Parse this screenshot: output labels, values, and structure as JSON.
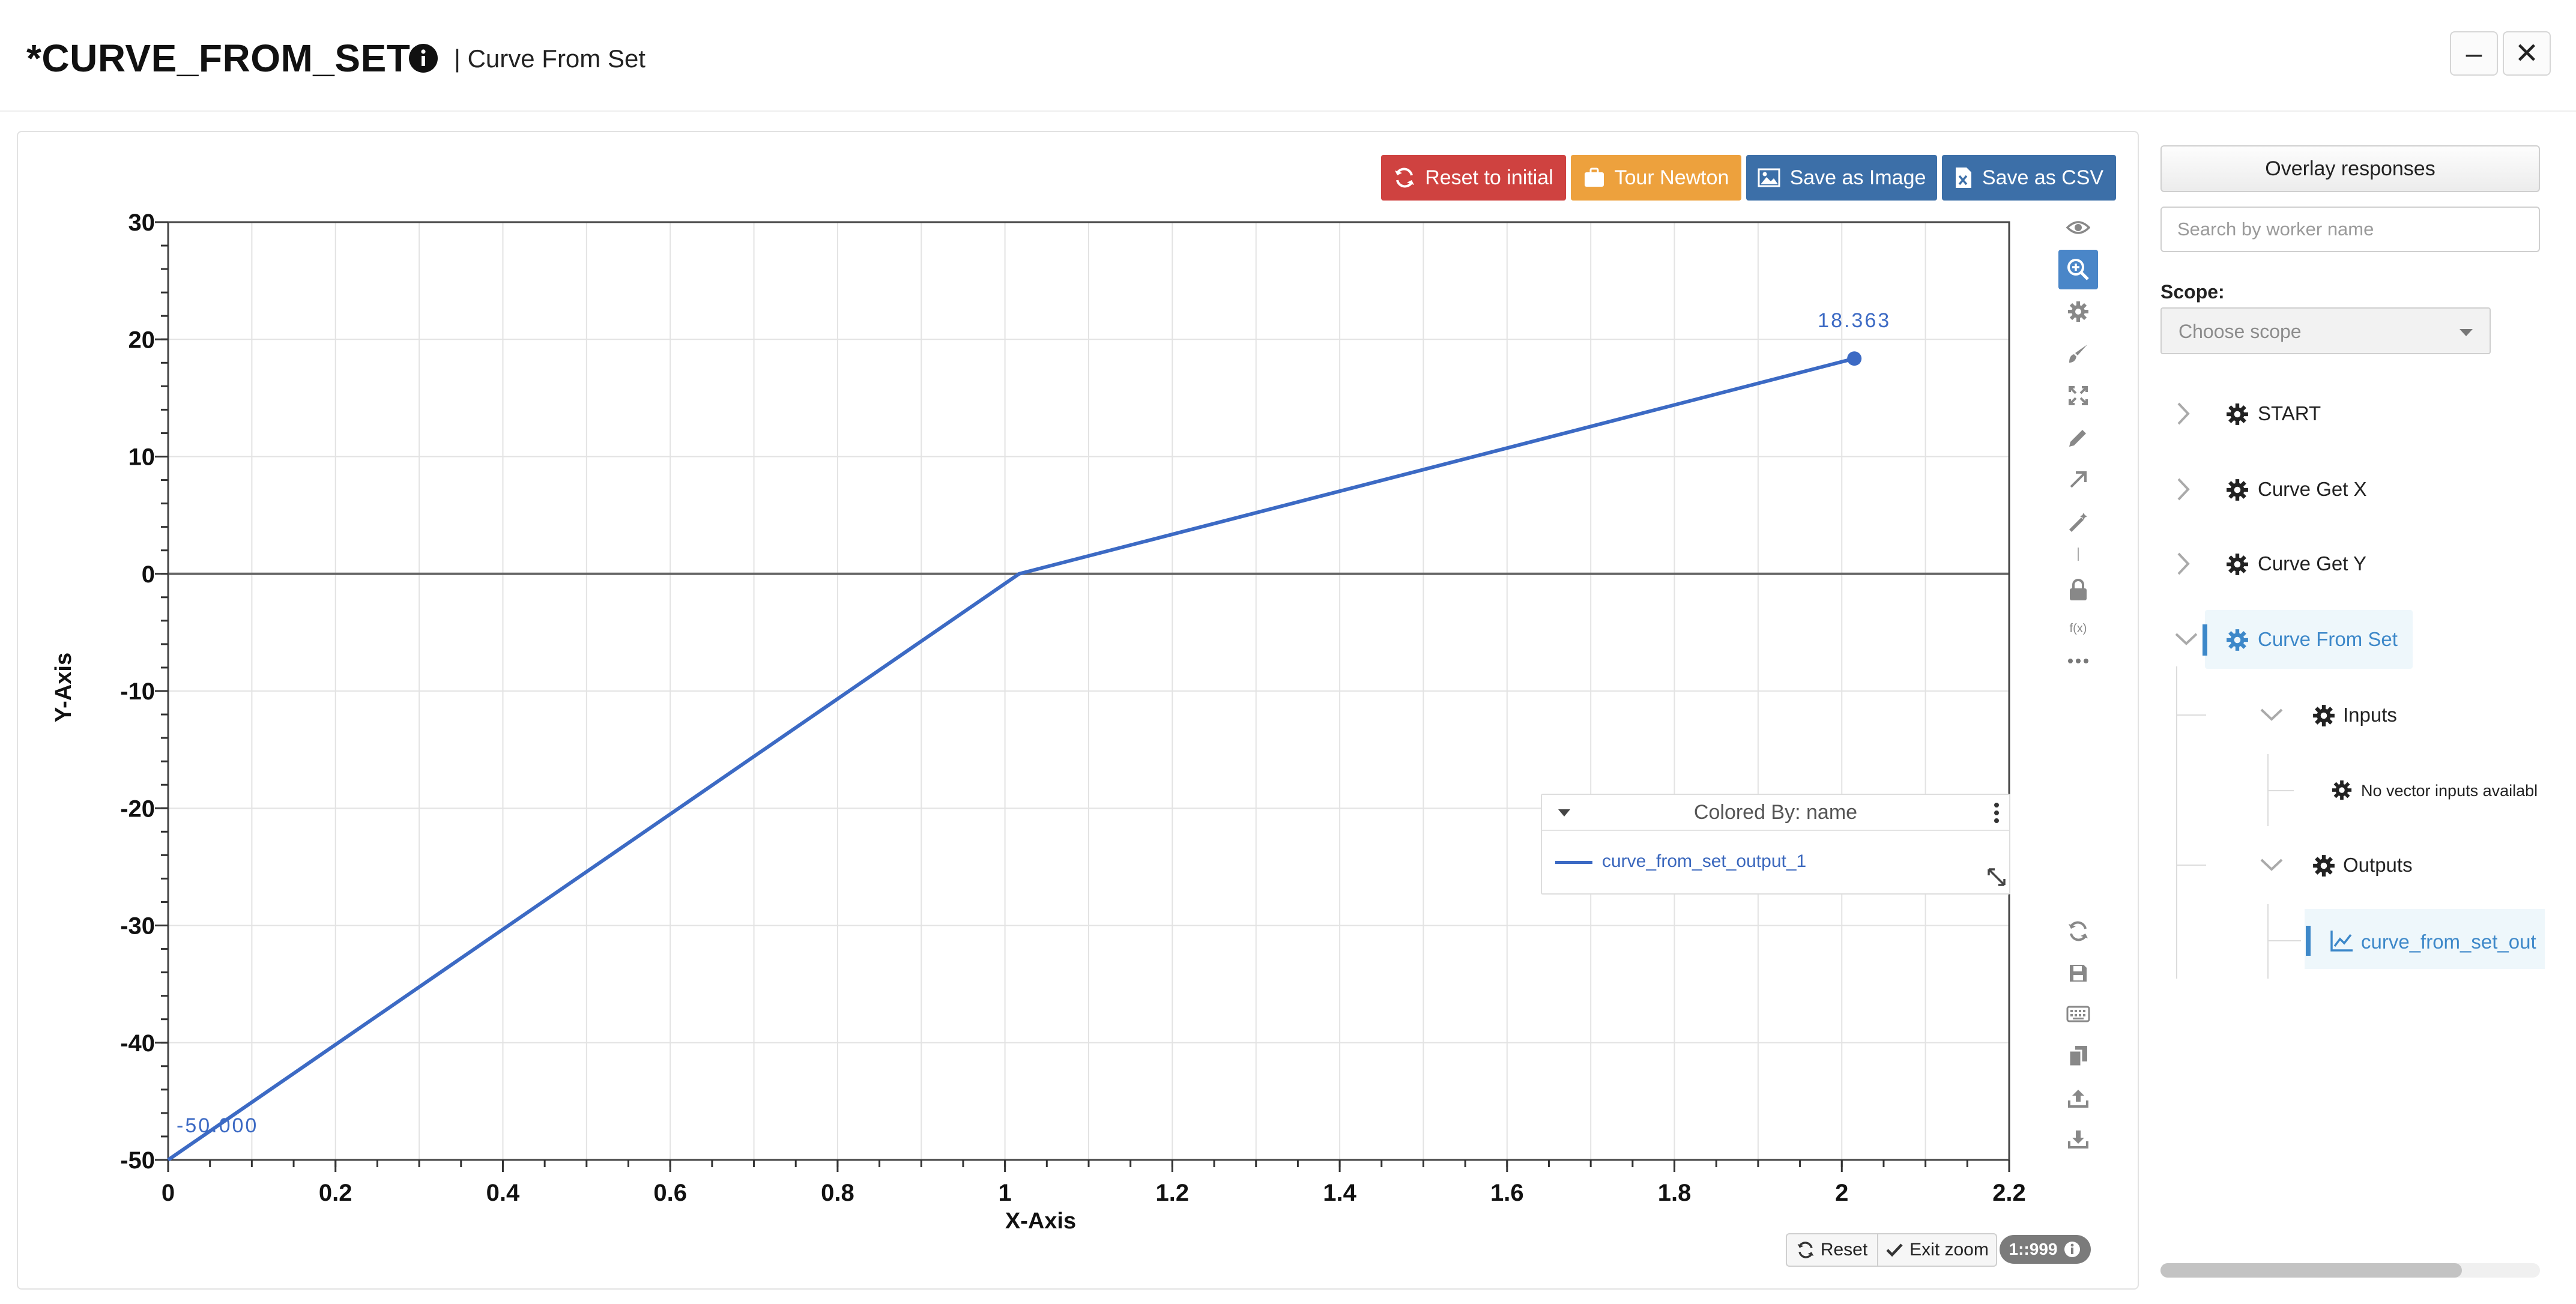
{
  "window": {
    "title": "*CURVE_FROM_SET",
    "subtitle": "| Curve From Set",
    "minimize_label": "–",
    "close_label": "✕"
  },
  "toolbar": {
    "reset_label": "Reset to initial",
    "tour_label": "Tour Newton",
    "save_image_label": "Save as Image",
    "save_csv_label": "Save as CSV",
    "colors": {
      "reset": "#cf4240",
      "tour": "#eda13d",
      "save_image": "#3c6fa8",
      "save_csv": "#3c6fa8"
    }
  },
  "chart_data": {
    "type": "line",
    "xlabel": "X-Axis",
    "ylabel": "Y-Axis",
    "xlim": [
      0,
      2.2
    ],
    "ylim": [
      -50,
      30
    ],
    "x_ticks": [
      0,
      0.2,
      0.4,
      0.6,
      0.8,
      1,
      1.2,
      1.4,
      1.6,
      1.8,
      2,
      2.2
    ],
    "x_tick_labels": [
      "0",
      "0.2",
      "0.4",
      "0.6",
      "0.8",
      "1",
      "1.2",
      "1.4",
      "1.6",
      "1.8",
      "2",
      "2.2"
    ],
    "y_ticks": [
      -50,
      -40,
      -30,
      -20,
      -10,
      0,
      10,
      20,
      30
    ],
    "y_tick_labels": [
      "-50",
      "-40",
      "-30",
      "-20",
      "-10",
      "0",
      "10",
      "20",
      "30"
    ],
    "grid": true,
    "series": [
      {
        "name": "curve_from_set_output_1",
        "color": "#3c6ac4",
        "x": [
          0,
          1.017,
          2.015
        ],
        "y": [
          -50,
          0,
          18.363
        ]
      }
    ],
    "annotations": [
      {
        "x": 0,
        "y": -50,
        "text": "-50.000"
      },
      {
        "x": 2.015,
        "y": 18.363,
        "text": "18.363"
      }
    ]
  },
  "legend": {
    "title": "Colored By: name",
    "entries": [
      "curve_from_set_output_1"
    ]
  },
  "zoom_controls": {
    "reset_label": "Reset",
    "exit_label": "Exit zoom",
    "ratio_label": "1::999"
  },
  "side_toolbar_icons": [
    "eye-icon",
    "zoom-in-icon",
    "gear-icon",
    "brush-icon",
    "expand-icon",
    "pencil-icon",
    "arrow-icon",
    "magic-wand-icon",
    "separator",
    "lock-icon",
    "function-icon",
    "more-icon"
  ],
  "side_toolbar_bottom_icons": [
    "refresh-icon",
    "save-icon",
    "keyboard-icon",
    "copy-icon",
    "upload-icon",
    "download-icon"
  ],
  "function_label": "f(x)",
  "right_panel": {
    "overlay_button": "Overlay responses",
    "search_placeholder": "Search by worker name",
    "scope_label": "Scope:",
    "scope_placeholder": "Choose scope",
    "tree": {
      "nodes": [
        "START",
        "Curve Get X",
        "Curve Get Y",
        "Curve From Set"
      ],
      "inputs_label": "Inputs",
      "no_inputs_label": "No vector inputs availabl",
      "outputs_label": "Outputs",
      "output_item": "curve_from_set_out"
    },
    "accent_color": "#3d88c9"
  }
}
